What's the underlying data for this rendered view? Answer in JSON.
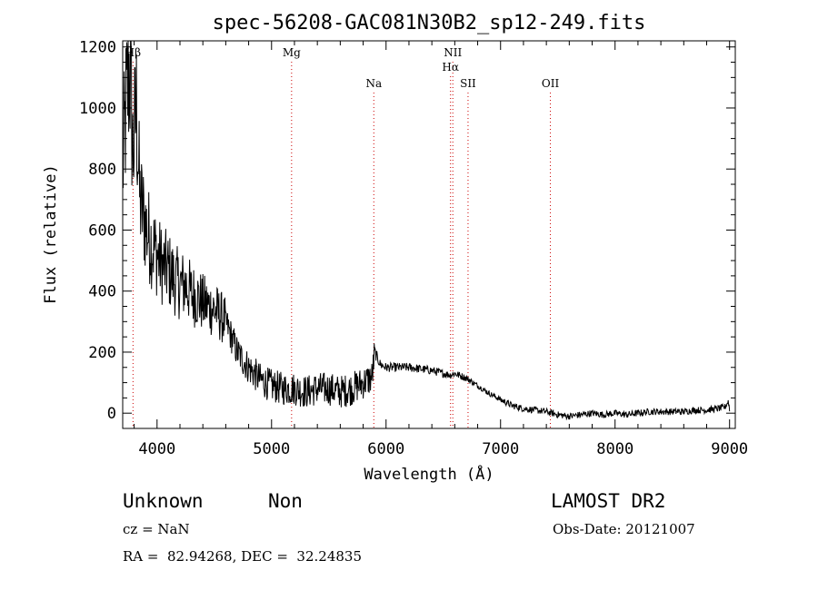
{
  "chart_data": {
    "type": "line",
    "title": "spec-56208-GAC081N30B2_sp12-249.fits",
    "xlabel": "Wavelength (Å)",
    "ylabel": "Flux (relative)",
    "xlim": [
      3700,
      9050
    ],
    "ylim": [
      -50,
      1220
    ],
    "xticks": [
      4000,
      5000,
      6000,
      7000,
      8000,
      9000
    ],
    "yticks": [
      0,
      200,
      400,
      600,
      800,
      1000,
      1200
    ],
    "grid": false,
    "line_color": "#000000",
    "marker_color": "#cc0000",
    "lines": [
      {
        "label": "Hβ",
        "x": 3790,
        "row": 1
      },
      {
        "label": "Mg",
        "x": 5175,
        "row": 1
      },
      {
        "label": "Na",
        "x": 5893,
        "row": 3
      },
      {
        "label": "NII",
        "x": 6583,
        "row": 1
      },
      {
        "label": "Hα",
        "x": 6563,
        "row": 2
      },
      {
        "label": "SII",
        "x": 6716,
        "row": 3
      },
      {
        "label": "OII",
        "x": 7435,
        "row": 3
      }
    ],
    "spectrum": {
      "x": [
        3700,
        3730,
        3760,
        3790,
        3820,
        3850,
        3880,
        3910,
        3950,
        4000,
        4050,
        4100,
        4150,
        4200,
        4250,
        4300,
        4350,
        4400,
        4450,
        4500,
        4550,
        4600,
        4650,
        4700,
        4800,
        4900,
        5000,
        5100,
        5200,
        5300,
        5400,
        5500,
        5600,
        5700,
        5800,
        5850,
        5880,
        5900,
        5950,
        6000,
        6100,
        6200,
        6300,
        6400,
        6500,
        6560,
        6600,
        6700,
        6800,
        6900,
        7000,
        7100,
        7200,
        7300,
        7400,
        7500,
        7600,
        7700,
        7800,
        7900,
        8000,
        8100,
        8200,
        8300,
        8400,
        8500,
        8600,
        8700,
        8800,
        8900,
        8960,
        8990,
        9000
      ],
      "y": [
        800,
        1000,
        1150,
        850,
        1000,
        700,
        650,
        600,
        560,
        520,
        480,
        470,
        440,
        420,
        420,
        390,
        380,
        360,
        350,
        340,
        320,
        300,
        250,
        200,
        150,
        110,
        90,
        80,
        80,
        70,
        80,
        80,
        70,
        80,
        100,
        110,
        120,
        200,
        160,
        150,
        150,
        150,
        145,
        140,
        130,
        125,
        130,
        115,
        90,
        65,
        45,
        25,
        15,
        10,
        5,
        -5,
        -10,
        -5,
        0,
        -5,
        0,
        -5,
        0,
        5,
        5,
        5,
        5,
        10,
        10,
        15,
        20,
        40,
        10
      ]
    }
  },
  "footer": {
    "class_label": "Unknown",
    "subclass_label": "Non",
    "survey": "LAMOST DR2",
    "cz": "cz = NaN",
    "obs_date": "Obs-Date: 20121007",
    "coords": "RA =  82.94268, DEC =  32.24835"
  }
}
